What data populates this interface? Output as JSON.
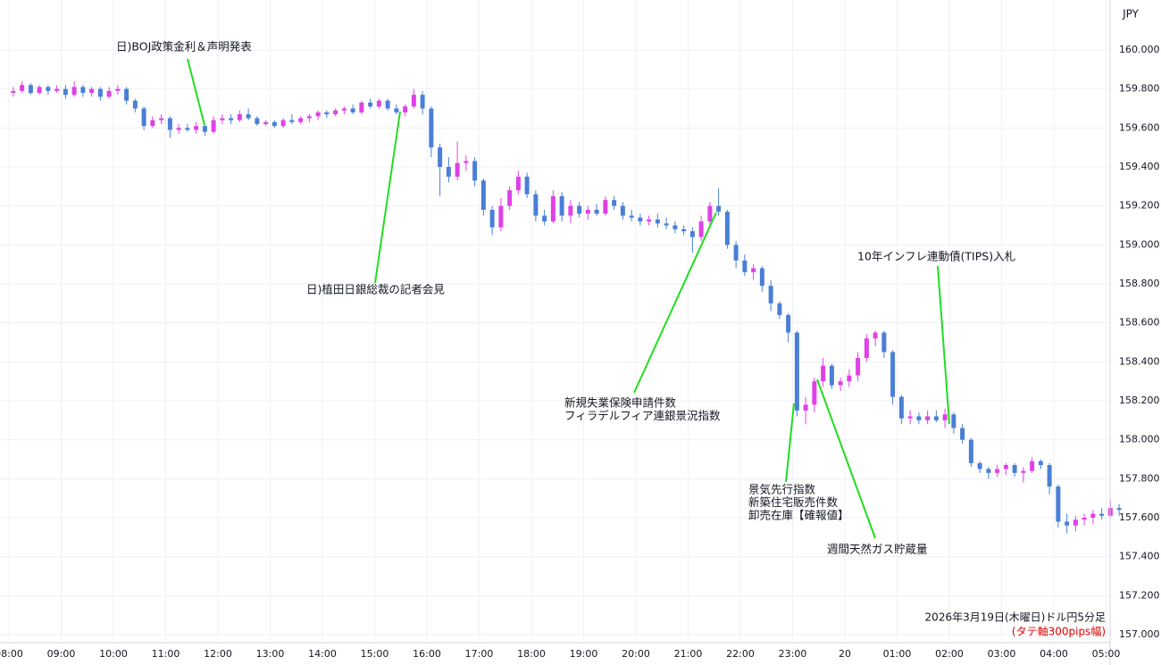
{
  "chart_data": {
    "type": "candlestick",
    "currency": "JPY",
    "footer": "2026年3月19日(木曜日)ドル円5分足",
    "footer_note": "(タテ軸300pips幅)",
    "up_color": "#e040e6",
    "down_color": "#4a7fd6",
    "ylim": [
      157.0,
      160.1
    ],
    "yticks": [
      {
        "value": 157.0,
        "label": "157.000"
      },
      {
        "value": 157.2,
        "label": "157.200"
      },
      {
        "value": 157.4,
        "label": "157.400"
      },
      {
        "value": 157.6,
        "label": "157.600"
      },
      {
        "value": 157.8,
        "label": "157.800"
      },
      {
        "value": 158.0,
        "label": "158.000"
      },
      {
        "value": 158.2,
        "label": "158.200"
      },
      {
        "value": 158.4,
        "label": "158.400"
      },
      {
        "value": 158.6,
        "label": "158.600"
      },
      {
        "value": 158.8,
        "label": "158.800"
      },
      {
        "value": 159.0,
        "label": "159.000"
      },
      {
        "value": 159.2,
        "label": "159.200"
      },
      {
        "value": 159.4,
        "label": "159.400"
      },
      {
        "value": 159.6,
        "label": "159.600"
      },
      {
        "value": 159.8,
        "label": "159.800"
      },
      {
        "value": 160.0,
        "label": "160.000"
      }
    ],
    "xticks": [
      {
        "value": 0,
        "label": "08:00"
      },
      {
        "value": 6,
        "label": "09:00"
      },
      {
        "value": 12,
        "label": "10:00"
      },
      {
        "value": 18,
        "label": "11:00"
      },
      {
        "value": 24,
        "label": "12:00"
      },
      {
        "value": 30,
        "label": "13:00"
      },
      {
        "value": 36,
        "label": "14:00"
      },
      {
        "value": 42,
        "label": "15:00"
      },
      {
        "value": 48,
        "label": "16:00"
      },
      {
        "value": 54,
        "label": "17:00"
      },
      {
        "value": 60,
        "label": "18:00"
      },
      {
        "value": 66,
        "label": "19:00"
      },
      {
        "value": 72,
        "label": "20:00"
      },
      {
        "value": 78,
        "label": "21:00"
      },
      {
        "value": 84,
        "label": "22:00"
      },
      {
        "value": 90,
        "label": "23:00"
      },
      {
        "value": 96,
        "label": "20"
      },
      {
        "value": 102,
        "label": "01:00"
      },
      {
        "value": 108,
        "label": "02:00"
      },
      {
        "value": 114,
        "label": "03:00"
      },
      {
        "value": 120,
        "label": "04:00"
      },
      {
        "value": 126,
        "label": "05:00"
      }
    ],
    "xlim": [
      0,
      128
    ],
    "grid": true,
    "annotations": [
      {
        "lines": [
          "日)BOJ政策金利＆声明発表"
        ]
      },
      {
        "lines": [
          "日)植田日銀総裁の記者会見"
        ]
      },
      {
        "lines": [
          "新規失業保険申請件数",
          "フィラデルフィア連銀景況指数"
        ]
      },
      {
        "lines": [
          "景気先行指数",
          "新築住宅販売件数",
          "卸売在庫【確報値】"
        ]
      },
      {
        "lines": [
          "週間天然ガス貯蔵量"
        ]
      },
      {
        "lines": [
          "10年インフレ連動債(TIPS)入札"
        ]
      }
    ],
    "candles": [
      [
        159.78,
        159.81,
        159.76,
        159.79
      ],
      [
        159.79,
        159.84,
        159.78,
        159.82
      ],
      [
        159.82,
        159.83,
        159.77,
        159.78
      ],
      [
        159.78,
        159.82,
        159.77,
        159.81
      ],
      [
        159.81,
        159.82,
        159.77,
        159.79
      ],
      [
        159.79,
        159.82,
        159.78,
        159.8
      ],
      [
        159.8,
        159.82,
        159.75,
        159.77
      ],
      [
        159.77,
        159.84,
        159.76,
        159.81
      ],
      [
        159.81,
        159.82,
        159.76,
        159.78
      ],
      [
        159.78,
        159.81,
        159.76,
        159.8
      ],
      [
        159.8,
        159.81,
        159.74,
        159.76
      ],
      [
        159.76,
        159.81,
        159.75,
        159.79
      ],
      [
        159.79,
        159.82,
        159.77,
        159.8
      ],
      [
        159.8,
        159.81,
        159.72,
        159.74
      ],
      [
        159.74,
        159.75,
        159.68,
        159.7
      ],
      [
        159.7,
        159.71,
        159.59,
        159.61
      ],
      [
        159.61,
        159.66,
        159.6,
        159.64
      ],
      [
        159.64,
        159.67,
        159.62,
        159.65
      ],
      [
        159.65,
        159.66,
        159.55,
        159.59
      ],
      [
        159.59,
        159.62,
        159.57,
        159.6
      ],
      [
        159.6,
        159.62,
        159.58,
        159.59
      ],
      [
        159.59,
        159.63,
        159.57,
        159.61
      ],
      [
        159.61,
        159.62,
        159.56,
        159.58
      ],
      [
        159.58,
        159.66,
        159.57,
        159.64
      ],
      [
        159.64,
        159.67,
        159.62,
        159.65
      ],
      [
        159.65,
        159.67,
        159.62,
        159.64
      ],
      [
        159.64,
        159.69,
        159.63,
        159.67
      ],
      [
        159.67,
        159.7,
        159.64,
        159.65
      ],
      [
        159.65,
        159.66,
        159.61,
        159.62
      ],
      [
        159.62,
        159.64,
        159.61,
        159.63
      ],
      [
        159.63,
        159.64,
        159.6,
        159.61
      ],
      [
        159.61,
        159.65,
        159.6,
        159.64
      ],
      [
        159.64,
        159.67,
        159.62,
        159.63
      ],
      [
        159.63,
        159.66,
        159.62,
        159.65
      ],
      [
        159.65,
        159.67,
        159.63,
        159.66
      ],
      [
        159.66,
        159.69,
        159.64,
        159.68
      ],
      [
        159.68,
        159.69,
        159.65,
        159.67
      ],
      [
        159.67,
        159.7,
        159.66,
        159.69
      ],
      [
        159.69,
        159.71,
        159.67,
        159.7
      ],
      [
        159.7,
        159.72,
        159.67,
        159.68
      ],
      [
        159.68,
        159.74,
        159.67,
        159.73
      ],
      [
        159.73,
        159.75,
        159.7,
        159.71
      ],
      [
        159.71,
        159.75,
        159.7,
        159.74
      ],
      [
        159.74,
        159.75,
        159.69,
        159.7
      ],
      [
        159.7,
        159.72,
        159.67,
        159.68
      ],
      [
        159.68,
        159.72,
        159.66,
        159.71
      ],
      [
        159.71,
        159.8,
        159.7,
        159.77
      ],
      [
        159.77,
        159.79,
        159.67,
        159.7
      ],
      [
        159.7,
        159.71,
        159.45,
        159.5
      ],
      [
        159.5,
        159.52,
        159.25,
        159.4
      ],
      [
        159.4,
        159.45,
        159.32,
        159.35
      ],
      [
        159.35,
        159.53,
        159.33,
        159.42
      ],
      [
        159.42,
        159.46,
        159.38,
        159.43
      ],
      [
        159.43,
        159.45,
        159.3,
        159.33
      ],
      [
        159.33,
        159.34,
        159.15,
        159.18
      ],
      [
        159.18,
        159.2,
        159.05,
        159.09
      ],
      [
        159.09,
        159.24,
        159.07,
        159.2
      ],
      [
        159.2,
        159.3,
        159.18,
        159.28
      ],
      [
        159.28,
        159.38,
        159.26,
        159.35
      ],
      [
        159.35,
        159.37,
        159.24,
        159.26
      ],
      [
        159.26,
        159.28,
        159.12,
        159.15
      ],
      [
        159.15,
        159.18,
        159.1,
        159.12
      ],
      [
        159.12,
        159.28,
        159.11,
        159.25
      ],
      [
        159.25,
        159.27,
        159.12,
        159.15
      ],
      [
        159.15,
        159.23,
        159.11,
        159.2
      ],
      [
        159.2,
        159.22,
        159.14,
        159.16
      ],
      [
        159.16,
        159.2,
        159.13,
        159.18
      ],
      [
        159.18,
        159.21,
        159.15,
        159.16
      ],
      [
        159.16,
        159.25,
        159.15,
        159.23
      ],
      [
        159.23,
        159.25,
        159.18,
        159.2
      ],
      [
        159.2,
        159.22,
        159.13,
        159.15
      ],
      [
        159.15,
        159.18,
        159.12,
        159.14
      ],
      [
        159.14,
        159.16,
        159.1,
        159.12
      ],
      [
        159.12,
        159.15,
        159.1,
        159.13
      ],
      [
        159.13,
        159.16,
        159.09,
        159.11
      ],
      [
        159.11,
        159.14,
        159.08,
        159.1
      ],
      [
        159.1,
        159.12,
        159.06,
        159.08
      ],
      [
        159.08,
        159.1,
        159.05,
        159.07
      ],
      [
        159.07,
        159.09,
        158.96,
        159.04
      ],
      [
        159.04,
        159.15,
        159.02,
        159.12
      ],
      [
        159.12,
        159.22,
        159.1,
        159.2
      ],
      [
        159.2,
        159.29,
        159.15,
        159.17
      ],
      [
        159.17,
        159.18,
        158.98,
        159.0
      ],
      [
        159.0,
        159.02,
        158.88,
        158.92
      ],
      [
        158.92,
        158.95,
        158.84,
        158.86
      ],
      [
        158.86,
        158.9,
        158.82,
        158.88
      ],
      [
        158.88,
        158.89,
        158.76,
        158.79
      ],
      [
        158.79,
        158.82,
        158.66,
        158.7
      ],
      [
        158.7,
        158.71,
        158.62,
        158.64
      ],
      [
        158.64,
        158.65,
        158.5,
        158.55
      ],
      [
        158.55,
        158.56,
        158.12,
        158.15
      ],
      [
        158.15,
        158.22,
        158.08,
        158.18
      ],
      [
        158.18,
        158.32,
        158.14,
        158.3
      ],
      [
        158.3,
        158.42,
        158.27,
        158.38
      ],
      [
        158.38,
        158.39,
        158.26,
        158.28
      ],
      [
        158.28,
        158.32,
        158.25,
        158.3
      ],
      [
        158.3,
        158.36,
        158.27,
        158.33
      ],
      [
        158.33,
        158.45,
        158.3,
        158.42
      ],
      [
        158.42,
        158.54,
        158.4,
        158.52
      ],
      [
        158.52,
        158.56,
        158.48,
        158.55
      ],
      [
        158.55,
        158.56,
        158.42,
        158.45
      ],
      [
        158.45,
        158.46,
        158.18,
        158.22
      ],
      [
        158.22,
        158.23,
        158.08,
        158.11
      ],
      [
        158.11,
        158.15,
        158.08,
        158.12
      ],
      [
        158.12,
        158.14,
        158.08,
        158.1
      ],
      [
        158.1,
        158.15,
        158.08,
        158.12
      ],
      [
        158.12,
        158.15,
        158.09,
        158.1
      ],
      [
        158.1,
        158.16,
        158.06,
        158.13
      ],
      [
        158.13,
        158.14,
        158.03,
        158.06
      ],
      [
        158.06,
        158.08,
        157.98,
        158.0
      ],
      [
        158.0,
        158.01,
        157.86,
        157.88
      ],
      [
        157.88,
        157.89,
        157.83,
        157.85
      ],
      [
        157.85,
        157.86,
        157.8,
        157.83
      ],
      [
        157.83,
        157.87,
        157.81,
        157.85
      ],
      [
        157.85,
        157.88,
        157.82,
        157.87
      ],
      [
        157.87,
        157.88,
        157.81,
        157.83
      ],
      [
        157.83,
        157.86,
        157.78,
        157.84
      ],
      [
        157.84,
        157.91,
        157.83,
        157.89
      ],
      [
        157.89,
        157.9,
        157.85,
        157.87
      ],
      [
        157.87,
        157.88,
        157.72,
        157.76
      ],
      [
        157.76,
        157.77,
        157.55,
        157.58
      ],
      [
        157.58,
        157.62,
        157.52,
        157.56
      ],
      [
        157.56,
        157.61,
        157.53,
        157.59
      ],
      [
        157.59,
        157.62,
        157.56,
        157.6
      ],
      [
        157.6,
        157.64,
        157.57,
        157.62
      ],
      [
        157.62,
        157.65,
        157.59,
        157.61
      ],
      [
        157.61,
        157.69,
        157.6,
        157.65
      ],
      [
        157.65,
        157.67,
        157.61,
        157.64
      ]
    ]
  }
}
